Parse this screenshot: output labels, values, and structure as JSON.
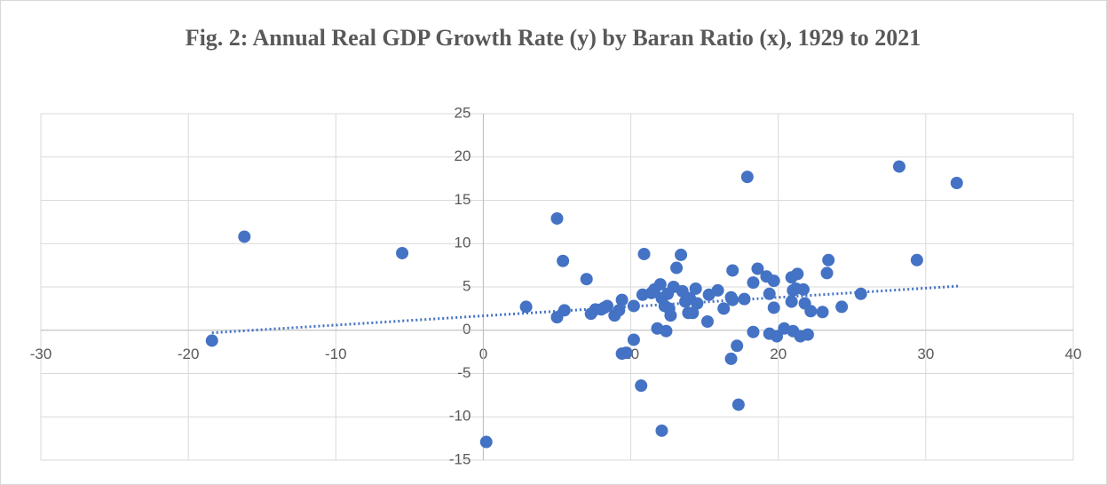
{
  "chart_data": {
    "type": "scatter",
    "title": "Fig. 2: Annual Real GDP Growth Rate (y) by Baran Ratio (x), 1929 to 2021",
    "color": "#4472c4",
    "x": [
      -18.4,
      -16.2,
      -5.5,
      0.2,
      2.9,
      5.0,
      5.0,
      5.4,
      5.5,
      7.0,
      7.3,
      7.6,
      8.0,
      8.2,
      8.4,
      8.9,
      9.2,
      9.4,
      9.4,
      9.7,
      10.2,
      10.2,
      10.7,
      10.8,
      10.9,
      11.4,
      11.6,
      11.8,
      12.0,
      12.1,
      12.1,
      12.3,
      12.4,
      12.5,
      12.6,
      12.7,
      12.9,
      13.1,
      13.4,
      13.5,
      13.7,
      13.9,
      14.0,
      14.2,
      14.4,
      14.5,
      15.2,
      15.3,
      15.9,
      16.3,
      16.8,
      16.8,
      16.9,
      17.2,
      17.3,
      16.9,
      17.7,
      17.9,
      18.3,
      18.3,
      18.6,
      19.2,
      19.4,
      19.4,
      19.7,
      19.7,
      19.9,
      20.4,
      20.9,
      20.9,
      21.0,
      21.0,
      21.2,
      21.3,
      21.5,
      21.7,
      21.8,
      22.0,
      22.2,
      23.0,
      23.3,
      23.4,
      24.3,
      25.6,
      29.4,
      28.2,
      32.1
    ],
    "values": [
      -1.2,
      10.8,
      8.9,
      -12.9,
      2.7,
      12.9,
      1.5,
      8.0,
      2.3,
      5.9,
      1.9,
      2.4,
      2.4,
      2.6,
      2.8,
      1.7,
      2.3,
      3.5,
      -2.7,
      -2.6,
      2.8,
      -1.1,
      -6.4,
      4.1,
      8.8,
      4.3,
      4.7,
      0.2,
      5.3,
      -11.6,
      3.7,
      2.8,
      -0.1,
      4.2,
      2.5,
      1.7,
      5.0,
      7.2,
      8.7,
      4.5,
      3.3,
      2.0,
      3.7,
      2.0,
      4.8,
      3.1,
      1.0,
      4.1,
      4.6,
      2.5,
      3.8,
      -3.3,
      6.9,
      -1.8,
      -8.6,
      3.5,
      3.6,
      17.7,
      -0.2,
      5.5,
      7.1,
      6.2,
      -0.4,
      4.2,
      2.6,
      5.7,
      -0.7,
      0.2,
      6.1,
      3.3,
      4.6,
      -0.1,
      4.8,
      6.5,
      -0.7,
      4.7,
      3.1,
      -0.5,
      2.2,
      2.1,
      6.6,
      8.1,
      2.7,
      4.2,
      8.1,
      18.9,
      17.0
    ],
    "trendline": {
      "x": [
        -18.4,
        32.3
      ],
      "values": [
        -0.3,
        5.1
      ]
    },
    "xlim": [
      -30,
      40
    ],
    "xticks": [
      -30,
      -20,
      -10,
      0,
      10,
      20,
      30,
      40
    ],
    "ylim": [
      -15,
      25
    ],
    "yticks": [
      -15,
      -10,
      -5,
      0,
      5,
      10,
      15,
      20,
      25
    ],
    "grid": true
  }
}
